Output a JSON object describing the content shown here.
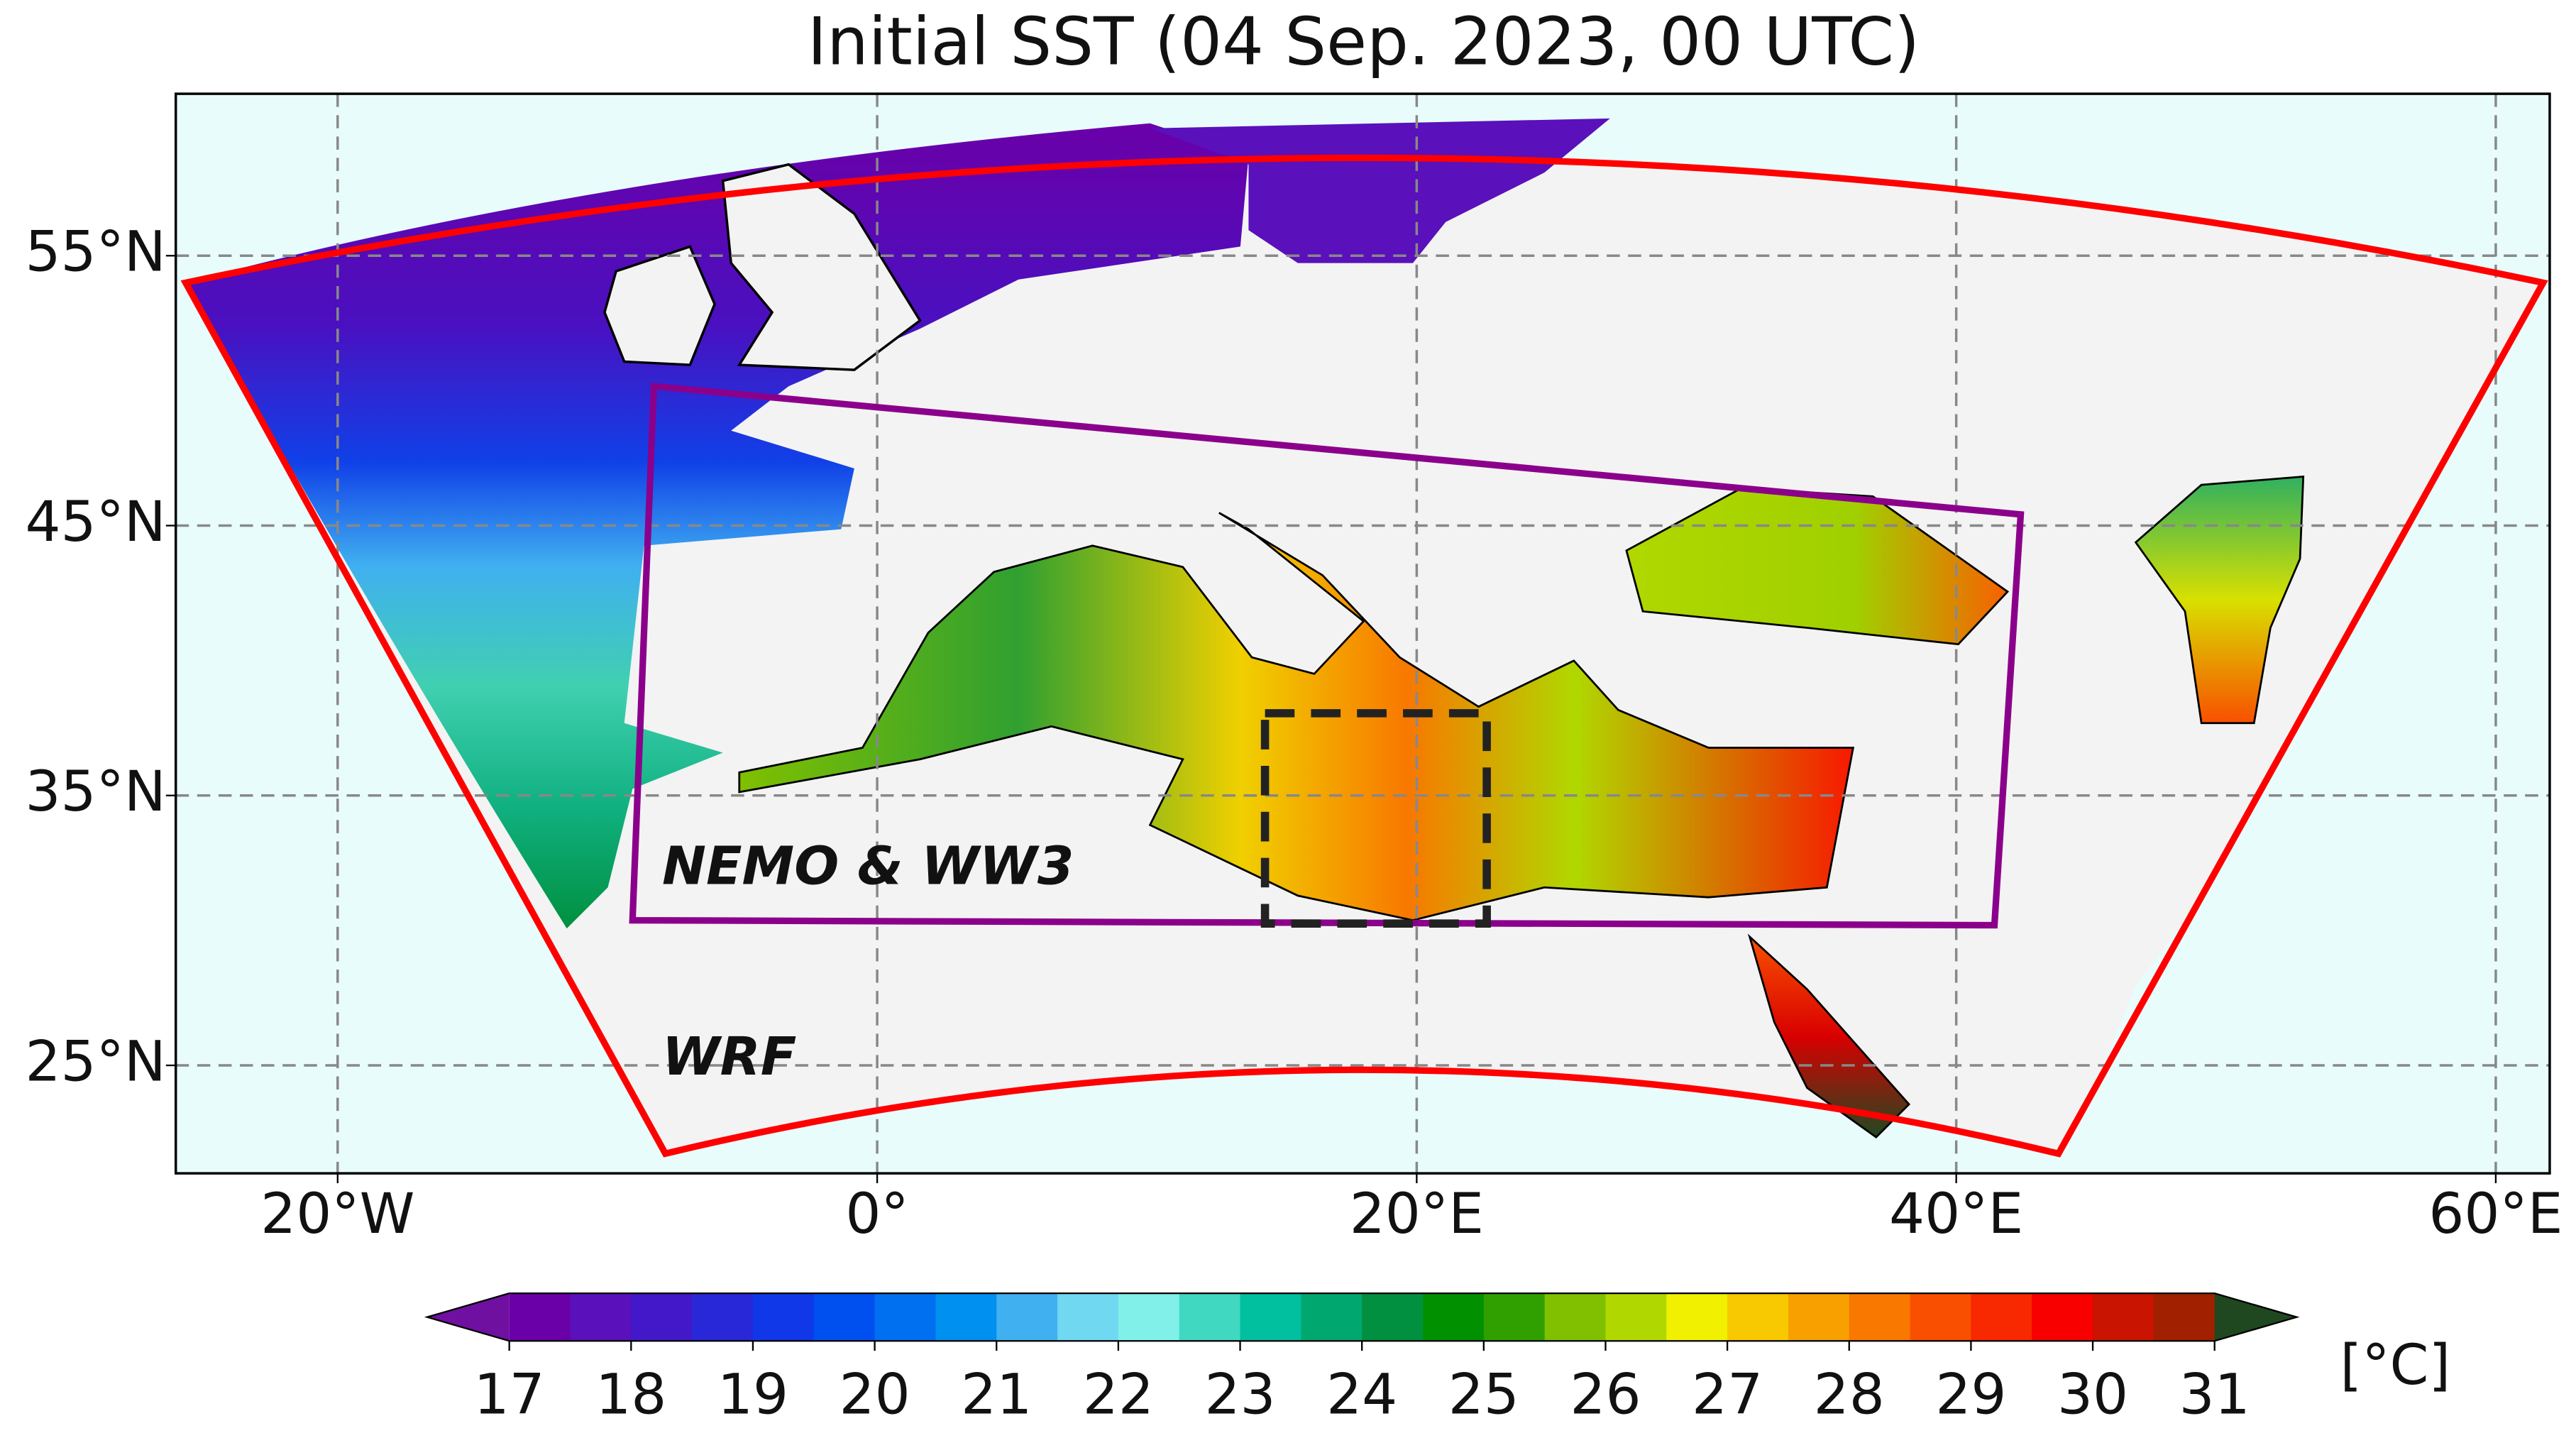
{
  "title": "Initial SST (04 Sep. 2023, 00 UTC)",
  "map": {
    "xlim": [
      -26,
      62
    ],
    "ylim": [
      21,
      61
    ],
    "xticks": [
      {
        "value": -20,
        "label": "20°W"
      },
      {
        "value": 0,
        "label": "0°"
      },
      {
        "value": 20,
        "label": "20°E"
      },
      {
        "value": 40,
        "label": "40°E"
      },
      {
        "value": 60,
        "label": "60°E"
      }
    ],
    "yticks": [
      {
        "value": 25,
        "label": "25°N"
      },
      {
        "value": 35,
        "label": "35°N"
      },
      {
        "value": 45,
        "label": "45°N"
      },
      {
        "value": 55,
        "label": "55°N"
      }
    ],
    "grid": true
  },
  "annotations": [
    {
      "text": "NEMO & WW3",
      "color": "#8b008b"
    },
    {
      "text": "WRF",
      "color": "#ff0000"
    }
  ],
  "colorbar": {
    "ticks": [
      17,
      18,
      19,
      20,
      21,
      22,
      23,
      24,
      25,
      26,
      27,
      28,
      29,
      30,
      31
    ],
    "colors": [
      "#6a00a8",
      "#5a10bb",
      "#4218c8",
      "#2828d8",
      "#1038e8",
      "#0050f0",
      "#0070f0",
      "#0090f0",
      "#40b0f0",
      "#70d8f0",
      "#80f0e8",
      "#40d8c0",
      "#00c0a0",
      "#00a870",
      "#009040",
      "#009000",
      "#30a000",
      "#80c000",
      "#b0d800",
      "#f0f000",
      "#f8c800",
      "#f8a000",
      "#f87800",
      "#f85000",
      "#f82800",
      "#f80000",
      "#c81400",
      "#a02000"
    ],
    "under": "#7010a0",
    "over": "#204820",
    "unit": "[°C]"
  }
}
